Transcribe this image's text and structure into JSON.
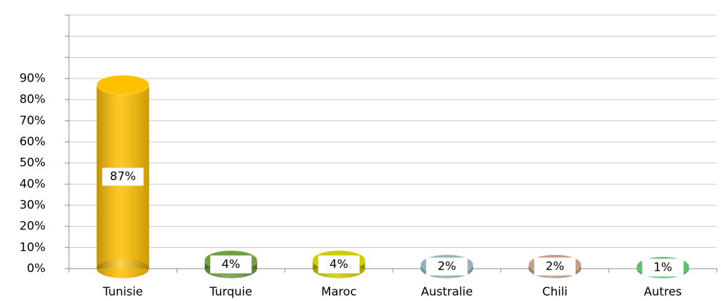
{
  "chart_data": {
    "type": "bar",
    "categories": [
      "Tunisie",
      "Turquie",
      "Maroc",
      "Australie",
      "Chili",
      "Autres"
    ],
    "values": [
      87,
      4,
      4,
      2,
      2,
      1
    ],
    "value_labels": [
      "87%",
      "4%",
      "4%",
      "2%",
      "2%",
      "1%"
    ],
    "colors": [
      "#ffc000",
      "#70a040",
      "#d0cc00",
      "#93b3bc",
      "#c4a088",
      "#5cbf6a"
    ],
    "ylim": [
      0,
      120
    ],
    "yticks": [
      {
        "value": 0,
        "label": "0%"
      },
      {
        "value": 10,
        "label": "10%"
      },
      {
        "value": 20,
        "label": "20%"
      },
      {
        "value": 30,
        "label": "30%"
      },
      {
        "value": 40,
        "label": "40%"
      },
      {
        "value": 50,
        "label": "50%"
      },
      {
        "value": 60,
        "label": "60%"
      },
      {
        "value": 70,
        "label": "70%"
      },
      {
        "value": 80,
        "label": "80%"
      },
      {
        "value": 90,
        "label": "90%"
      },
      {
        "value": 100,
        "label": null
      },
      {
        "value": 110,
        "label": null
      },
      {
        "value": 120,
        "label": null
      }
    ],
    "grid": true
  }
}
